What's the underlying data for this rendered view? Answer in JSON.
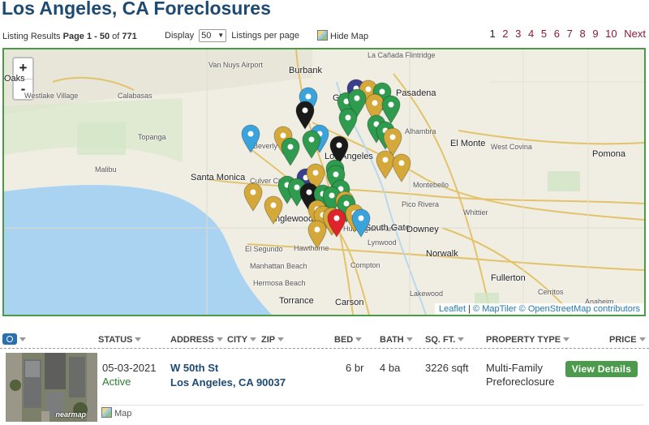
{
  "page": {
    "title": "Los Angeles, CA Foreclosures"
  },
  "toolbar": {
    "listing_prefix": "Listing Results",
    "page_range": "Page 1 - 50",
    "of_label": "of",
    "total": "771",
    "display_label": "Display",
    "display_value": "50",
    "per_page_label": "Listings per page",
    "hide_map_label": "Hide Map"
  },
  "pagination": {
    "pages": [
      "1",
      "2",
      "3",
      "4",
      "5",
      "6",
      "7",
      "8",
      "9",
      "10"
    ],
    "current": "1",
    "next_label": "Next"
  },
  "map": {
    "zoom_in": "+",
    "zoom_out": "-",
    "attribution": {
      "leaflet": "Leaflet",
      "sep": " | ",
      "maptiler": "© MapTiler",
      "osm": "© OpenStreetMap contributors"
    },
    "places": [
      {
        "name": "Oaks",
        "cls": "big"
      },
      {
        "name": "Westlake Village",
        "cls": ""
      },
      {
        "name": "Calabasas",
        "cls": ""
      },
      {
        "name": "Topanga",
        "cls": ""
      },
      {
        "name": "Malibu",
        "cls": ""
      },
      {
        "name": "Santa Monica",
        "cls": "big"
      },
      {
        "name": "Burbank",
        "cls": "big"
      },
      {
        "name": "La Cañada Flintridge",
        "cls": ""
      },
      {
        "name": "Pasadena",
        "cls": "big"
      },
      {
        "name": "Van Nuys Airport",
        "cls": ""
      },
      {
        "name": "Glendale",
        "cls": "big"
      },
      {
        "name": "Alhambra",
        "cls": ""
      },
      {
        "name": "El Monte",
        "cls": "big"
      },
      {
        "name": "Beverly Hills",
        "cls": ""
      },
      {
        "name": "Los Angeles",
        "cls": "big"
      },
      {
        "name": "West Covina",
        "cls": ""
      },
      {
        "name": "Pomona",
        "cls": "big"
      },
      {
        "name": "Culver City",
        "cls": ""
      },
      {
        "name": "Inglewood",
        "cls": "big"
      },
      {
        "name": "Montebello",
        "cls": ""
      },
      {
        "name": "Huntington Park",
        "cls": ""
      },
      {
        "name": "Pico Rivera",
        "cls": ""
      },
      {
        "name": "Whittier",
        "cls": ""
      },
      {
        "name": "South Gate",
        "cls": "big"
      },
      {
        "name": "Downey",
        "cls": "big"
      },
      {
        "name": "El Segundo",
        "cls": ""
      },
      {
        "name": "Hawthorne",
        "cls": ""
      },
      {
        "name": "Lynwood",
        "cls": ""
      },
      {
        "name": "Norwalk",
        "cls": "big"
      },
      {
        "name": "Manhattan Beach",
        "cls": ""
      },
      {
        "name": "Compton",
        "cls": ""
      },
      {
        "name": "Fullerton",
        "cls": "big"
      },
      {
        "name": "Hermosa Beach",
        "cls": ""
      },
      {
        "name": "Torrance",
        "cls": "big"
      },
      {
        "name": "Carson",
        "cls": "big"
      },
      {
        "name": "Lakewood",
        "cls": ""
      },
      {
        "name": "Cerritos",
        "cls": ""
      },
      {
        "name": "Anaheim",
        "cls": ""
      }
    ],
    "pin_colors": {
      "green": "#2e9b4e",
      "gold": "#d4a93a",
      "blue": "#3aa3dc",
      "black": "#1a1a1a",
      "red": "#e0242c",
      "navy": "#3a3f8c"
    },
    "pins": [
      {
        "c": "navy"
      },
      {
        "c": "gold"
      },
      {
        "c": "green"
      },
      {
        "c": "green"
      },
      {
        "c": "green"
      },
      {
        "c": "gold"
      },
      {
        "c": "green"
      },
      {
        "c": "green"
      },
      {
        "c": "blue"
      },
      {
        "c": "black"
      },
      {
        "c": "green"
      },
      {
        "c": "green"
      },
      {
        "c": "gold"
      },
      {
        "c": "blue"
      },
      {
        "c": "gold"
      },
      {
        "c": "green"
      },
      {
        "c": "blue"
      },
      {
        "c": "green"
      },
      {
        "c": "black"
      },
      {
        "c": "green"
      },
      {
        "c": "gold"
      },
      {
        "c": "gold"
      },
      {
        "c": "green"
      },
      {
        "c": "navy"
      },
      {
        "c": "gold"
      },
      {
        "c": "green"
      },
      {
        "c": "green"
      },
      {
        "c": "green"
      },
      {
        "c": "gold"
      },
      {
        "c": "black"
      },
      {
        "c": "green"
      },
      {
        "c": "green"
      },
      {
        "c": "gold"
      },
      {
        "c": "gold"
      },
      {
        "c": "green"
      },
      {
        "c": "gold"
      },
      {
        "c": "gold"
      },
      {
        "c": "gold"
      },
      {
        "c": "gold"
      },
      {
        "c": "red"
      },
      {
        "c": "blue"
      },
      {
        "c": "gold"
      }
    ]
  },
  "table": {
    "headers": {
      "status": "STATUS",
      "address": "ADDRESS",
      "city": "CITY",
      "zip": "ZIP",
      "bed": "BED",
      "bath": "BATH",
      "sqft": "SQ. FT.",
      "property_type": "PROPERTY TYPE",
      "price": "PRICE"
    },
    "rows": [
      {
        "date": "05-03-2021",
        "status": "Active",
        "street": "W 50th St",
        "city_line": "Los Angeles, CA 90037",
        "bed": "6 br",
        "bath": "4 ba",
        "sqft": "3226 sqft",
        "type_line1": "Multi-Family",
        "type_line2": "Preforeclosure",
        "button": "View Details",
        "map_link": "Map",
        "thumb_brand": "nearmap"
      }
    ]
  }
}
